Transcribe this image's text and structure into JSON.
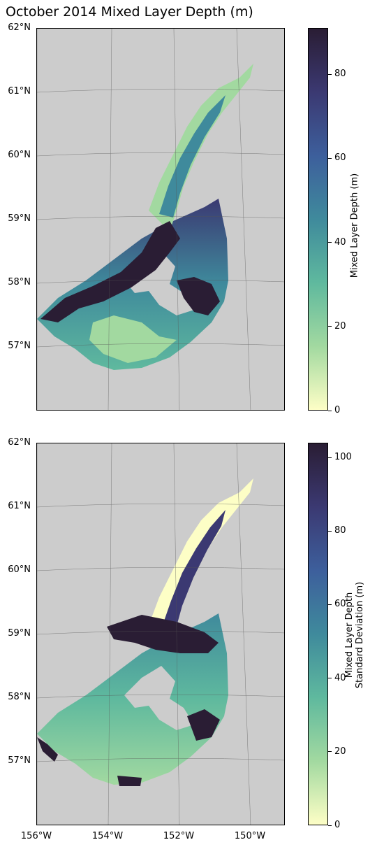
{
  "title": "October 2014 Mixed Layer Depth (m)",
  "lat_ticks": [
    "62°N",
    "61°N",
    "60°N",
    "59°N",
    "58°N",
    "57°N"
  ],
  "lon_ticks": [
    "156°W",
    "154°W",
    "152°W",
    "150°W"
  ],
  "colors": {
    "land": "#cccccc",
    "frame": "#000000",
    "colormap": "deep",
    "ramp": [
      "#2a1d34",
      "#3b3972",
      "#3d5f9c",
      "#3f8a9c",
      "#5fb99e",
      "#a2d9a0",
      "#fdfec6"
    ]
  },
  "panels": [
    {
      "colorbar": {
        "label_lines": [
          "Mixed Layer Depth (m)"
        ],
        "ticks": [
          "0",
          "20",
          "40",
          "60",
          "80"
        ],
        "vmin": 0,
        "vmax": 91
      }
    },
    {
      "colorbar": {
        "label_lines": [
          "Mixed Layer Depth",
          "Standard Deviation (m)"
        ],
        "ticks": [
          "0",
          "20",
          "40",
          "60",
          "80",
          "100"
        ],
        "vmin": 0,
        "vmax": 104
      }
    }
  ]
}
